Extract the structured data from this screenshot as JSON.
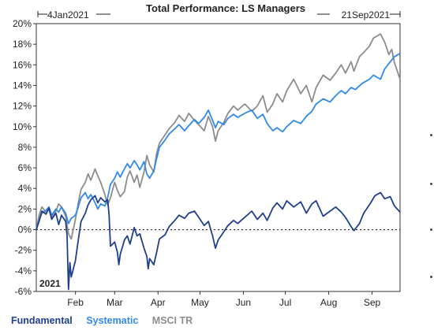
{
  "chart_data": {
    "type": "line",
    "title": "Total Performance: LS Managers",
    "date_start_label": "4Jan2021",
    "date_end_label": "21Sep2021",
    "year_label": "2021",
    "ylim": [
      -6,
      20
    ],
    "y_ticks": [
      "20%",
      "18%",
      "16%",
      "14%",
      "12%",
      "10%",
      "8%",
      "6%",
      "4%",
      "2%",
      "0%",
      "-2%",
      "-4%",
      "-6%"
    ],
    "y_tick_values": [
      20,
      18,
      16,
      14,
      12,
      10,
      8,
      6,
      4,
      2,
      0,
      -2,
      -4,
      -6
    ],
    "x_ticks": [
      "Feb",
      "Mar",
      "Apr",
      "May",
      "Jun",
      "Jul",
      "Aug",
      "Sep"
    ],
    "x_tick_dates": [
      "2021-02-01",
      "2021-03-01",
      "2021-04-01",
      "2021-05-01",
      "2021-06-01",
      "2021-07-01",
      "2021-08-01",
      "2021-09-01"
    ],
    "x_range": [
      "2021-01-04",
      "2021-09-21"
    ],
    "zero_line": "dotted",
    "legend_placement": "bottom-left",
    "series": [
      {
        "name": "Fundamental",
        "color": "#1f3f8c",
        "points": [
          [
            "2021-01-04",
            0.0
          ],
          [
            "2021-01-06",
            0.8
          ],
          [
            "2021-01-08",
            1.8
          ],
          [
            "2021-01-11",
            1.5
          ],
          [
            "2021-01-13",
            2.1
          ],
          [
            "2021-01-15",
            1.0
          ],
          [
            "2021-01-18",
            1.6
          ],
          [
            "2021-01-20",
            0.5
          ],
          [
            "2021-01-22",
            1.4
          ],
          [
            "2021-01-25",
            0.8
          ],
          [
            "2021-01-26",
            -0.6
          ],
          [
            "2021-01-27",
            -5.8
          ],
          [
            "2021-01-28",
            -3.2
          ],
          [
            "2021-01-29",
            -4.6
          ],
          [
            "2021-02-01",
            -3.0
          ],
          [
            "2021-02-03",
            -1.0
          ],
          [
            "2021-02-05",
            0.8
          ],
          [
            "2021-02-08",
            1.6
          ],
          [
            "2021-02-10",
            2.4
          ],
          [
            "2021-02-12",
            2.9
          ],
          [
            "2021-02-15",
            3.3
          ],
          [
            "2021-02-17",
            2.6
          ],
          [
            "2021-02-19",
            3.1
          ],
          [
            "2021-02-22",
            2.7
          ],
          [
            "2021-02-24",
            2.9
          ],
          [
            "2021-02-25",
            1.5
          ],
          [
            "2021-02-26",
            -1.6
          ],
          [
            "2021-03-01",
            -1.2
          ],
          [
            "2021-03-03",
            -2.2
          ],
          [
            "2021-03-04",
            -3.4
          ],
          [
            "2021-03-05",
            -2.4
          ],
          [
            "2021-03-08",
            -1.0
          ],
          [
            "2021-03-10",
            -0.6
          ],
          [
            "2021-03-12",
            -1.4
          ],
          [
            "2021-03-15",
            0.2
          ],
          [
            "2021-03-17",
            -0.6
          ],
          [
            "2021-03-19",
            -0.4
          ],
          [
            "2021-03-22",
            -1.8
          ],
          [
            "2021-03-24",
            -2.6
          ],
          [
            "2021-03-25",
            -3.8
          ],
          [
            "2021-03-26",
            -2.8
          ],
          [
            "2021-03-29",
            -3.4
          ],
          [
            "2021-03-31",
            -2.2
          ],
          [
            "2021-04-02",
            -0.9
          ],
          [
            "2021-04-06",
            -0.5
          ],
          [
            "2021-04-09",
            0.3
          ],
          [
            "2021-04-13",
            0.9
          ],
          [
            "2021-04-16",
            1.4
          ],
          [
            "2021-04-20",
            1.1
          ],
          [
            "2021-04-23",
            1.6
          ],
          [
            "2021-04-27",
            1.8
          ],
          [
            "2021-04-30",
            1.2
          ],
          [
            "2021-05-04",
            0.4
          ],
          [
            "2021-05-07",
            0.8
          ],
          [
            "2021-05-10",
            -0.6
          ],
          [
            "2021-05-12",
            -1.8
          ],
          [
            "2021-05-14",
            -1.0
          ],
          [
            "2021-05-18",
            -0.2
          ],
          [
            "2021-05-21",
            0.4
          ],
          [
            "2021-05-25",
            0.9
          ],
          [
            "2021-05-28",
            0.6
          ],
          [
            "2021-06-02",
            1.2
          ],
          [
            "2021-06-07",
            1.8
          ],
          [
            "2021-06-11",
            1.0
          ],
          [
            "2021-06-15",
            1.6
          ],
          [
            "2021-06-18",
            0.9
          ],
          [
            "2021-06-22",
            2.1
          ],
          [
            "2021-06-25",
            2.6
          ],
          [
            "2021-06-29",
            2.0
          ],
          [
            "2021-07-02",
            2.8
          ],
          [
            "2021-07-07",
            2.2
          ],
          [
            "2021-07-12",
            2.7
          ],
          [
            "2021-07-16",
            1.6
          ],
          [
            "2021-07-20",
            2.5
          ],
          [
            "2021-07-23",
            2.8
          ],
          [
            "2021-07-28",
            1.3
          ],
          [
            "2021-08-02",
            1.8
          ],
          [
            "2021-08-06",
            2.2
          ],
          [
            "2021-08-10",
            1.7
          ],
          [
            "2021-08-13",
            1.2
          ],
          [
            "2021-08-17",
            0.3
          ],
          [
            "2021-08-19",
            -0.1
          ],
          [
            "2021-08-23",
            0.6
          ],
          [
            "2021-08-26",
            1.6
          ],
          [
            "2021-08-31",
            2.6
          ],
          [
            "2021-09-03",
            3.3
          ],
          [
            "2021-09-07",
            3.6
          ],
          [
            "2021-09-10",
            3.0
          ],
          [
            "2021-09-14",
            3.2
          ],
          [
            "2021-09-17",
            2.3
          ],
          [
            "2021-09-21",
            1.7
          ]
        ]
      },
      {
        "name": "Systematic",
        "color": "#2f8ae8",
        "points": [
          [
            "2021-01-04",
            0.0
          ],
          [
            "2021-01-06",
            0.9
          ],
          [
            "2021-01-08",
            1.6
          ],
          [
            "2021-01-11",
            1.9
          ],
          [
            "2021-01-13",
            2.2
          ],
          [
            "2021-01-15",
            1.4
          ],
          [
            "2021-01-18",
            2.0
          ],
          [
            "2021-01-20",
            1.7
          ],
          [
            "2021-01-22",
            2.2
          ],
          [
            "2021-01-25",
            1.6
          ],
          [
            "2021-01-27",
            0.6
          ],
          [
            "2021-01-29",
            1.1
          ],
          [
            "2021-02-01",
            1.4
          ],
          [
            "2021-02-03",
            2.2
          ],
          [
            "2021-02-05",
            3.1
          ],
          [
            "2021-02-08",
            3.6
          ],
          [
            "2021-02-10",
            3.0
          ],
          [
            "2021-02-12",
            3.4
          ],
          [
            "2021-02-15",
            2.6
          ],
          [
            "2021-02-17",
            2.0
          ],
          [
            "2021-02-19",
            2.5
          ],
          [
            "2021-02-22",
            2.3
          ],
          [
            "2021-02-24",
            3.1
          ],
          [
            "2021-02-26",
            4.4
          ],
          [
            "2021-03-01",
            5.0
          ],
          [
            "2021-03-03",
            5.6
          ],
          [
            "2021-03-05",
            5.1
          ],
          [
            "2021-03-08",
            5.9
          ],
          [
            "2021-03-10",
            6.4
          ],
          [
            "2021-03-12",
            6.0
          ],
          [
            "2021-03-15",
            6.7
          ],
          [
            "2021-03-17",
            6.3
          ],
          [
            "2021-03-19",
            5.8
          ],
          [
            "2021-03-22",
            6.6
          ],
          [
            "2021-03-24",
            5.4
          ],
          [
            "2021-03-26",
            5.0
          ],
          [
            "2021-03-29",
            5.7
          ],
          [
            "2021-03-31",
            6.9
          ],
          [
            "2021-04-02",
            8.0
          ],
          [
            "2021-04-06",
            8.7
          ],
          [
            "2021-04-09",
            9.3
          ],
          [
            "2021-04-13",
            9.8
          ],
          [
            "2021-04-16",
            10.2
          ],
          [
            "2021-04-20",
            9.6
          ],
          [
            "2021-04-23",
            10.1
          ],
          [
            "2021-04-27",
            10.7
          ],
          [
            "2021-04-30",
            10.3
          ],
          [
            "2021-05-04",
            10.9
          ],
          [
            "2021-05-07",
            11.6
          ],
          [
            "2021-05-10",
            10.6
          ],
          [
            "2021-05-12",
            9.9
          ],
          [
            "2021-05-14",
            10.5
          ],
          [
            "2021-05-18",
            10.2
          ],
          [
            "2021-05-21",
            10.8
          ],
          [
            "2021-05-25",
            11.2
          ],
          [
            "2021-05-28",
            10.9
          ],
          [
            "2021-06-02",
            11.3
          ],
          [
            "2021-06-07",
            11.6
          ],
          [
            "2021-06-11",
            10.8
          ],
          [
            "2021-06-15",
            11.2
          ],
          [
            "2021-06-18",
            10.3
          ],
          [
            "2021-06-22",
            9.6
          ],
          [
            "2021-06-25",
            9.9
          ],
          [
            "2021-06-29",
            9.5
          ],
          [
            "2021-07-02",
            10.0
          ],
          [
            "2021-07-07",
            10.6
          ],
          [
            "2021-07-12",
            10.3
          ],
          [
            "2021-07-16",
            11.0
          ],
          [
            "2021-07-20",
            11.5
          ],
          [
            "2021-07-23",
            12.2
          ],
          [
            "2021-07-28",
            12.7
          ],
          [
            "2021-08-02",
            12.4
          ],
          [
            "2021-08-06",
            13.0
          ],
          [
            "2021-08-10",
            13.5
          ],
          [
            "2021-08-13",
            13.2
          ],
          [
            "2021-08-17",
            13.8
          ],
          [
            "2021-08-20",
            13.6
          ],
          [
            "2021-08-25",
            14.2
          ],
          [
            "2021-08-30",
            14.6
          ],
          [
            "2021-09-02",
            15.0
          ],
          [
            "2021-09-07",
            14.6
          ],
          [
            "2021-09-10",
            15.6
          ],
          [
            "2021-09-14",
            16.3
          ],
          [
            "2021-09-17",
            16.8
          ],
          [
            "2021-09-21",
            17.1
          ]
        ]
      },
      {
        "name": "MSCI TR",
        "color": "#8c8c8c",
        "points": [
          [
            "2021-01-04",
            0.0
          ],
          [
            "2021-01-06",
            1.4
          ],
          [
            "2021-01-08",
            2.2
          ],
          [
            "2021-01-11",
            1.7
          ],
          [
            "2021-01-13",
            2.0
          ],
          [
            "2021-01-15",
            1.2
          ],
          [
            "2021-01-18",
            1.8
          ],
          [
            "2021-01-20",
            2.5
          ],
          [
            "2021-01-22",
            2.2
          ],
          [
            "2021-01-25",
            1.3
          ],
          [
            "2021-01-27",
            -0.4
          ],
          [
            "2021-01-29",
            -0.9
          ],
          [
            "2021-02-01",
            1.0
          ],
          [
            "2021-02-03",
            2.6
          ],
          [
            "2021-02-05",
            3.9
          ],
          [
            "2021-02-08",
            4.6
          ],
          [
            "2021-02-10",
            5.4
          ],
          [
            "2021-02-12",
            4.8
          ],
          [
            "2021-02-15",
            5.9
          ],
          [
            "2021-02-17",
            5.2
          ],
          [
            "2021-02-19",
            4.6
          ],
          [
            "2021-02-22",
            3.4
          ],
          [
            "2021-02-24",
            2.4
          ],
          [
            "2021-02-26",
            3.1
          ],
          [
            "2021-03-01",
            4.6
          ],
          [
            "2021-03-03",
            3.8
          ],
          [
            "2021-03-05",
            3.2
          ],
          [
            "2021-03-08",
            3.7
          ],
          [
            "2021-03-10",
            5.1
          ],
          [
            "2021-03-12",
            5.7
          ],
          [
            "2021-03-15",
            4.6
          ],
          [
            "2021-03-17",
            5.3
          ],
          [
            "2021-03-19",
            4.1
          ],
          [
            "2021-03-22",
            5.6
          ],
          [
            "2021-03-24",
            7.2
          ],
          [
            "2021-03-26",
            6.3
          ],
          [
            "2021-03-29",
            5.6
          ],
          [
            "2021-03-31",
            7.4
          ],
          [
            "2021-04-02",
            8.4
          ],
          [
            "2021-04-06",
            9.2
          ],
          [
            "2021-04-09",
            9.8
          ],
          [
            "2021-04-13",
            10.4
          ],
          [
            "2021-04-16",
            11.1
          ],
          [
            "2021-04-20",
            10.5
          ],
          [
            "2021-04-23",
            11.3
          ],
          [
            "2021-04-27",
            10.6
          ],
          [
            "2021-04-30",
            10.2
          ],
          [
            "2021-05-04",
            9.6
          ],
          [
            "2021-05-07",
            11.0
          ],
          [
            "2021-05-10",
            10.0
          ],
          [
            "2021-05-12",
            8.6
          ],
          [
            "2021-05-14",
            9.6
          ],
          [
            "2021-05-18",
            10.4
          ],
          [
            "2021-05-21",
            11.3
          ],
          [
            "2021-05-25",
            12.0
          ],
          [
            "2021-05-28",
            11.6
          ],
          [
            "2021-06-02",
            12.2
          ],
          [
            "2021-06-07",
            11.5
          ],
          [
            "2021-06-11",
            12.0
          ],
          [
            "2021-06-15",
            13.0
          ],
          [
            "2021-06-18",
            11.4
          ],
          [
            "2021-06-22",
            12.2
          ],
          [
            "2021-06-25",
            13.2
          ],
          [
            "2021-06-29",
            12.4
          ],
          [
            "2021-07-02",
            13.5
          ],
          [
            "2021-07-07",
            14.6
          ],
          [
            "2021-07-12",
            13.2
          ],
          [
            "2021-07-16",
            14.0
          ],
          [
            "2021-07-20",
            12.4
          ],
          [
            "2021-07-23",
            13.8
          ],
          [
            "2021-07-28",
            15.0
          ],
          [
            "2021-08-02",
            14.5
          ],
          [
            "2021-08-06",
            15.2
          ],
          [
            "2021-08-10",
            16.0
          ],
          [
            "2021-08-13",
            15.2
          ],
          [
            "2021-08-17",
            16.3
          ],
          [
            "2021-08-19",
            15.4
          ],
          [
            "2021-08-23",
            16.8
          ],
          [
            "2021-08-26",
            17.2
          ],
          [
            "2021-08-30",
            17.8
          ],
          [
            "2021-09-02",
            18.6
          ],
          [
            "2021-09-07",
            19.0
          ],
          [
            "2021-09-10",
            18.2
          ],
          [
            "2021-09-13",
            17.0
          ],
          [
            "2021-09-15",
            17.5
          ],
          [
            "2021-09-17",
            16.2
          ],
          [
            "2021-09-21",
            14.6
          ]
        ]
      }
    ]
  }
}
